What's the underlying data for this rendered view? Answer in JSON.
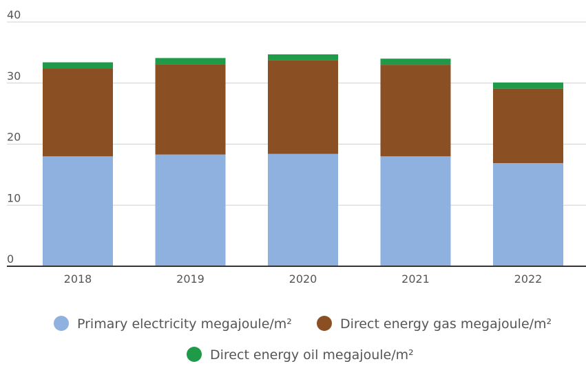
{
  "chart_data": {
    "type": "bar",
    "stacked": true,
    "categories": [
      "2018",
      "2019",
      "2020",
      "2021",
      "2022"
    ],
    "series": [
      {
        "name": "Primary electricity  megajoule/m²",
        "color": "#8EB1DF",
        "values": [
          18.0,
          18.3,
          18.4,
          18.0,
          16.9
        ]
      },
      {
        "name": "Direct energy gas  megajoule/m²",
        "color": "#8B4F24",
        "values": [
          14.4,
          14.8,
          15.3,
          15.0,
          12.2
        ]
      },
      {
        "name": "Direct energy oil  megajoule/m²",
        "color": "#1E9A48",
        "values": [
          1.0,
          1.0,
          1.0,
          1.0,
          1.0
        ]
      }
    ],
    "y_ticks": [
      "0",
      "10",
      "20",
      "30",
      "40"
    ],
    "ylim": [
      0,
      40
    ],
    "grid": true,
    "legend_position": "bottom",
    "axis_color": "#333333",
    "grid_color": "#d0d0d0"
  }
}
